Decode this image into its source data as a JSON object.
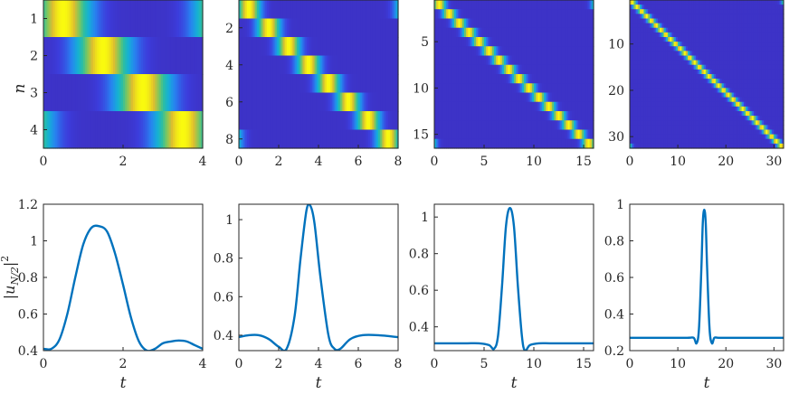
{
  "colors": {
    "line": "#0072BD",
    "low": "#3E26A8",
    "mid": "#2EB7A0",
    "high": "#F9FB0E"
  },
  "chart_data": [
    {
      "type": "heatmap",
      "N": 4,
      "xlim": [
        0,
        4
      ],
      "ylim": [
        0.5,
        4.5
      ],
      "xticks": [
        "0",
        "2",
        "4"
      ],
      "xtick_values": [
        0,
        2,
        4
      ],
      "yticks": [
        "1",
        "2",
        "3",
        "4"
      ],
      "ytick_values": [
        1,
        2,
        3,
        4
      ],
      "ylabel": "n",
      "xlabel": ""
    },
    {
      "type": "heatmap",
      "N": 8,
      "xlim": [
        0,
        8
      ],
      "ylim": [
        0.5,
        8.5
      ],
      "xticks": [
        "0",
        "2",
        "4",
        "6",
        "8"
      ],
      "xtick_values": [
        0,
        2,
        4,
        6,
        8
      ],
      "yticks": [
        "2",
        "4",
        "6",
        "8"
      ],
      "ytick_values": [
        2,
        4,
        6,
        8
      ],
      "ylabel": "",
      "xlabel": ""
    },
    {
      "type": "heatmap",
      "N": 16,
      "xlim": [
        0,
        16
      ],
      "ylim": [
        0.5,
        16.5
      ],
      "xticks": [
        "0",
        "5",
        "10",
        "15"
      ],
      "xtick_values": [
        0,
        5,
        10,
        15
      ],
      "yticks": [
        "5",
        "10",
        "15"
      ],
      "ytick_values": [
        5,
        10,
        15
      ],
      "ylabel": "",
      "xlabel": ""
    },
    {
      "type": "heatmap",
      "N": 32,
      "xlim": [
        0,
        32
      ],
      "ylim": [
        0.5,
        32.5
      ],
      "xticks": [
        "0",
        "10",
        "20",
        "30"
      ],
      "xtick_values": [
        0,
        10,
        20,
        30
      ],
      "yticks": [
        "10",
        "20",
        "30"
      ],
      "ytick_values": [
        10,
        20,
        30
      ],
      "ylabel": "",
      "xlabel": ""
    },
    {
      "type": "line",
      "xlim": [
        0,
        4
      ],
      "ylim": [
        0.4,
        1.2
      ],
      "xticks": [
        "0",
        "2",
        "4"
      ],
      "xtick_values": [
        0,
        2,
        4
      ],
      "yticks": [
        "0.4",
        "0.6",
        "0.8",
        "1",
        "1.2"
      ],
      "ytick_values": [
        0.4,
        0.6,
        0.8,
        1,
        1.2
      ],
      "xlabel": "t",
      "ylabel": "|u_{N/2}|^2",
      "x": [
        0,
        0.2,
        0.4,
        0.6,
        0.8,
        1.0,
        1.2,
        1.4,
        1.6,
        1.8,
        2.0,
        2.2,
        2.4,
        2.6,
        2.8,
        3.0,
        3.2,
        3.4,
        3.6,
        3.8,
        4.0
      ],
      "y": [
        0.41,
        0.41,
        0.46,
        0.6,
        0.8,
        0.98,
        1.07,
        1.08,
        1.05,
        0.93,
        0.76,
        0.58,
        0.45,
        0.4,
        0.41,
        0.44,
        0.45,
        0.455,
        0.45,
        0.43,
        0.41
      ]
    },
    {
      "type": "line",
      "xlim": [
        0,
        8
      ],
      "ylim": [
        0.32,
        1.08
      ],
      "xticks": [
        "0",
        "2",
        "4",
        "6",
        "8"
      ],
      "xtick_values": [
        0,
        2,
        4,
        6,
        8
      ],
      "yticks": [
        "0.4",
        "0.6",
        "0.8",
        "1"
      ],
      "ytick_values": [
        0.4,
        0.6,
        0.8,
        1
      ],
      "xlabel": "t",
      "ylabel": "",
      "x": [
        0,
        0.5,
        1.0,
        1.5,
        2.0,
        2.4,
        2.8,
        3.1,
        3.4,
        3.6,
        3.8,
        4.1,
        4.5,
        4.8,
        5.1,
        5.6,
        6.2,
        7.0,
        8.0
      ],
      "y": [
        0.39,
        0.4,
        0.4,
        0.38,
        0.34,
        0.33,
        0.5,
        0.8,
        1.05,
        1.07,
        0.98,
        0.7,
        0.4,
        0.33,
        0.33,
        0.38,
        0.4,
        0.4,
        0.39
      ]
    },
    {
      "type": "line",
      "xlim": [
        0,
        16
      ],
      "ylim": [
        0.27,
        1.07
      ],
      "xticks": [
        "0",
        "5",
        "10",
        "15"
      ],
      "xtick_values": [
        0,
        5,
        10,
        15
      ],
      "yticks": [
        "0.4",
        "0.6",
        "0.8",
        "1"
      ],
      "ytick_values": [
        0.4,
        0.6,
        0.8,
        1
      ],
      "xlabel": "t",
      "ylabel": "",
      "x": [
        0,
        3,
        4.5,
        5.5,
        6.0,
        6.4,
        6.8,
        7.2,
        7.6,
        8.0,
        8.4,
        8.8,
        9.1,
        9.6,
        10.5,
        12,
        16
      ],
      "y": [
        0.31,
        0.31,
        0.31,
        0.3,
        0.28,
        0.35,
        0.62,
        0.95,
        1.05,
        0.95,
        0.62,
        0.35,
        0.27,
        0.3,
        0.31,
        0.31,
        0.31
      ]
    },
    {
      "type": "line",
      "xlim": [
        0,
        32
      ],
      "ylim": [
        0.2,
        1
      ],
      "xticks": [
        "0",
        "10",
        "20",
        "30"
      ],
      "xtick_values": [
        0,
        10,
        20,
        30
      ],
      "yticks": [
        "0.2",
        "0.4",
        "0.6",
        "0.8",
        "1"
      ],
      "ytick_values": [
        0.2,
        0.4,
        0.6,
        0.8,
        1
      ],
      "xlabel": "t",
      "ylabel": "",
      "x": [
        0,
        8,
        12,
        13.3,
        13.9,
        14.4,
        14.9,
        15.2,
        15.5,
        15.8,
        16.1,
        16.6,
        17.1,
        17.6,
        18.5,
        22,
        32
      ],
      "y": [
        0.27,
        0.27,
        0.27,
        0.27,
        0.24,
        0.32,
        0.65,
        0.9,
        0.97,
        0.9,
        0.65,
        0.32,
        0.24,
        0.27,
        0.27,
        0.27,
        0.27
      ]
    }
  ]
}
